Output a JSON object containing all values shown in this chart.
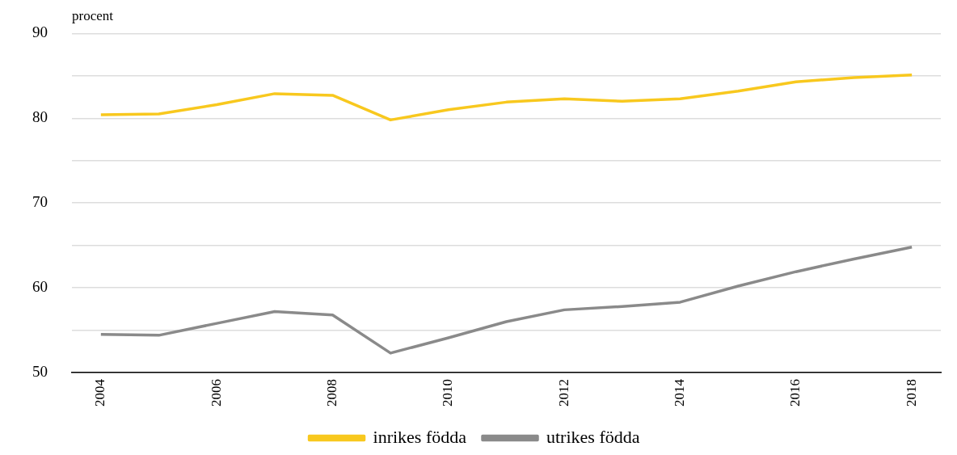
{
  "chart_data": {
    "type": "line",
    "ylabel": "procent",
    "categories": [
      "2004",
      null,
      "2006",
      null,
      "2008",
      null,
      "2010",
      null,
      "2012",
      null,
      "2014",
      null,
      "2016",
      null,
      "2018"
    ],
    "series": [
      {
        "name": "inrikes födda",
        "color": "#f8c81e",
        "values": [
          80.4,
          80.5,
          81.6,
          82.9,
          82.7,
          79.8,
          81.0,
          81.9,
          82.3,
          82.0,
          82.3,
          83.2,
          84.3,
          84.8,
          85.1
        ]
      },
      {
        "name": "utrikes födda",
        "color": "#8a8a8a",
        "values": [
          54.5,
          54.4,
          55.8,
          57.2,
          56.8,
          52.3,
          54.1,
          56.0,
          57.4,
          57.8,
          58.3,
          60.2,
          61.9,
          63.4,
          64.8
        ]
      }
    ],
    "ylim": [
      50,
      90
    ],
    "yticks": [
      50,
      {
        "value": 55,
        "label": null
      },
      60,
      {
        "value": 65,
        "label": null
      },
      70,
      {
        "value": 75,
        "label": null
      },
      80,
      {
        "value": 85,
        "label": null
      },
      90
    ],
    "grid": "y",
    "legend": "bottom",
    "marker": "none",
    "line_style": "solid"
  }
}
